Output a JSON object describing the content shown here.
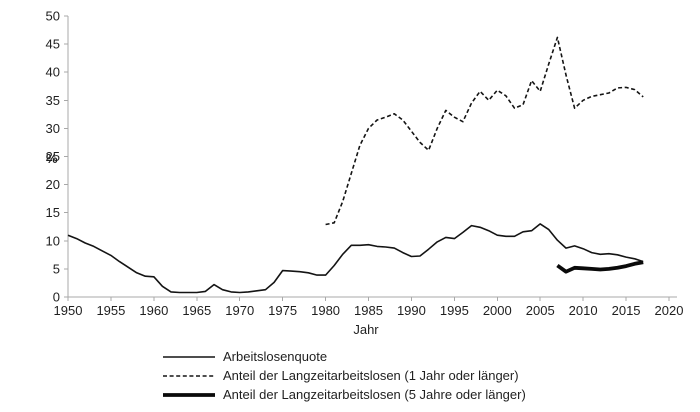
{
  "figure": {
    "background": "#ffffff",
    "text_color": "#1f1f1f",
    "axis_color": "#a8a8a8",
    "line_color": "#141414"
  },
  "chart_data": {
    "type": "line",
    "xlabel": "Jahr",
    "ylabel": "%",
    "xlim": [
      1950,
      2020
    ],
    "ylim": [
      0,
      50
    ],
    "x_ticks": [
      1950,
      1955,
      1960,
      1965,
      1970,
      1975,
      1980,
      1985,
      1990,
      1995,
      2000,
      2005,
      2010,
      2015,
      2020
    ],
    "y_ticks": [
      0,
      5,
      10,
      15,
      20,
      25,
      30,
      35,
      40,
      45,
      50
    ],
    "grid": false,
    "legend_position": "bottom-left",
    "series": [
      {
        "name": "Arbeitslosenquote",
        "style": "solid-thin",
        "start_year": 1950,
        "values": [
          11.0,
          10.4,
          9.6,
          9.0,
          8.2,
          7.4,
          6.3,
          5.3,
          4.3,
          3.7,
          3.6,
          1.9,
          0.9,
          0.8,
          0.8,
          0.8,
          1.0,
          2.2,
          1.3,
          0.9,
          0.8,
          0.9,
          1.1,
          1.3,
          2.6,
          4.7,
          4.6,
          4.5,
          4.3,
          3.9,
          3.9,
          5.6,
          7.6,
          9.2,
          9.2,
          9.3,
          9.0,
          8.9,
          8.7,
          7.9,
          7.2,
          7.3,
          8.5,
          9.8,
          10.6,
          10.4,
          11.5,
          12.7,
          12.4,
          11.8,
          11.0,
          10.8,
          10.8,
          11.6,
          11.8,
          13.0,
          12.0,
          10.1,
          8.7,
          9.1,
          8.6,
          7.9,
          7.6,
          7.7,
          7.5,
          7.1,
          6.8,
          6.3
        ]
      },
      {
        "name": "Anteil der Langzeitarbeitslosen (1 Jahr oder länger)",
        "style": "dashed",
        "start_year": 1980,
        "values": [
          12.9,
          13.2,
          17.0,
          22.0,
          27.0,
          30.0,
          31.5,
          32.0,
          32.6,
          31.5,
          29.5,
          27.5,
          26.1,
          30.0,
          33.2,
          32.0,
          31.2,
          34.5,
          36.6,
          35.0,
          36.8,
          35.8,
          33.6,
          34.2,
          38.5,
          36.6,
          41.5,
          46.2,
          39.5,
          33.6,
          35.0,
          35.7,
          36.0,
          36.3,
          37.2,
          37.3,
          36.9,
          35.6
        ]
      },
      {
        "name": "Anteil der Langzeitarbeitslosen (5 Jahre oder länger)",
        "style": "solid-thick",
        "start_year": 2007,
        "values": [
          5.6,
          4.5,
          5.2,
          5.1,
          5.0,
          4.9,
          5.0,
          5.2,
          5.5,
          5.9,
          6.2
        ]
      }
    ]
  }
}
